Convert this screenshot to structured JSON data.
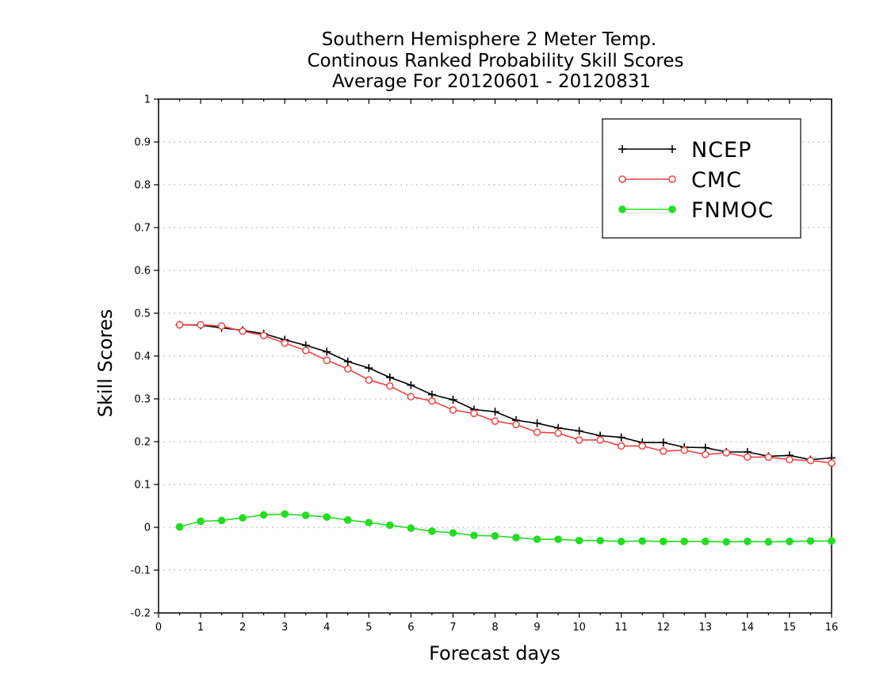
{
  "chart_data": {
    "type": "line",
    "title": [
      "Southern Hemisphere 2 Meter Temp.",
      "Continous Ranked Probability Skill Scores",
      "Average For 20120601 - 20120831"
    ],
    "xlabel": "Forecast days",
    "ylabel": "Skill Scores",
    "xlim": [
      0,
      16
    ],
    "ylim": [
      -0.2,
      1
    ],
    "xticks": [
      "0",
      "1",
      "2",
      "3",
      "4",
      "5",
      "6",
      "7",
      "8",
      "9",
      "10",
      "11",
      "12",
      "13",
      "14",
      "15",
      "16"
    ],
    "yticks": [
      "1",
      "0.9",
      "0.8",
      "0.7",
      "0.6",
      "0.5",
      "0.4",
      "0.3",
      "0.2",
      "0.1",
      "0",
      "-0.1",
      "-0.2"
    ],
    "grid": "horizontal dotted",
    "legend_position": "top-right",
    "x": [
      0.5,
      1,
      1.5,
      2,
      2.5,
      3,
      3.5,
      4,
      4.5,
      5,
      5.5,
      6,
      6.5,
      7,
      7.5,
      8,
      8.5,
      9,
      9.5,
      10,
      10.5,
      11,
      11.5,
      12,
      12.5,
      13,
      13.5,
      14,
      14.5,
      15,
      15.5,
      16
    ],
    "series": [
      {
        "name": "NCEP",
        "color": "#000000",
        "marker": "plus",
        "values": [
          0.473,
          0.472,
          0.466,
          0.46,
          0.452,
          0.438,
          0.425,
          0.41,
          0.387,
          0.372,
          0.35,
          0.332,
          0.31,
          0.298,
          0.275,
          0.27,
          0.25,
          0.243,
          0.232,
          0.225,
          0.214,
          0.21,
          0.198,
          0.198,
          0.187,
          0.186,
          0.176,
          0.176,
          0.166,
          0.168,
          0.158,
          0.162
        ]
      },
      {
        "name": "CMC",
        "color": "#ee4444",
        "marker": "open-circle",
        "values": [
          0.473,
          0.473,
          0.47,
          0.458,
          0.448,
          0.43,
          0.413,
          0.39,
          0.37,
          0.344,
          0.33,
          0.305,
          0.295,
          0.274,
          0.266,
          0.248,
          0.24,
          0.222,
          0.22,
          0.204,
          0.204,
          0.19,
          0.19,
          0.178,
          0.18,
          0.17,
          0.174,
          0.164,
          0.164,
          0.158,
          0.156,
          0.15
        ]
      },
      {
        "name": "FNMOC",
        "color": "#22dd22",
        "marker": "filled-circle",
        "values": [
          0.001,
          0.014,
          0.016,
          0.022,
          0.029,
          0.031,
          0.028,
          0.024,
          0.017,
          0.011,
          0.005,
          -0.002,
          -0.009,
          -0.013,
          -0.019,
          -0.02,
          -0.024,
          -0.028,
          -0.028,
          -0.031,
          -0.031,
          -0.033,
          -0.032,
          -0.033,
          -0.033,
          -0.033,
          -0.034,
          -0.033,
          -0.034,
          -0.033,
          -0.032,
          -0.032
        ]
      }
    ]
  }
}
